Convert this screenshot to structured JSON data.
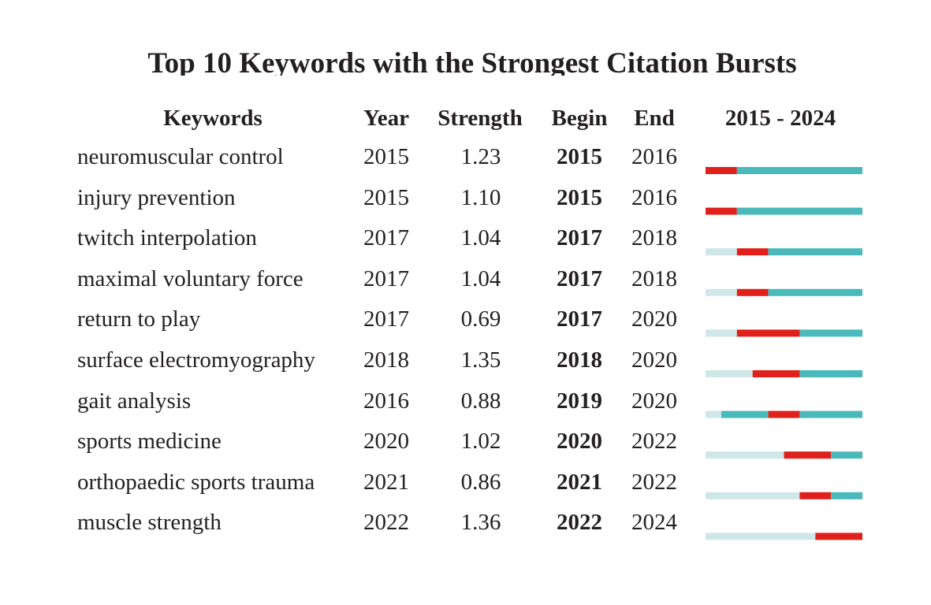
{
  "chart_data": {
    "type": "table",
    "title": "Top 10 Keywords with the Strongest Citation Bursts",
    "headers": {
      "keywords": "Keywords",
      "year": "Year",
      "strength": "Strength",
      "begin": "Begin",
      "end": "End",
      "range": "2015 - 2024"
    },
    "timeline": {
      "start": 2015,
      "end": 2024
    },
    "colors": {
      "burst": "#e0201b",
      "active": "#4ab9bb",
      "inactive": "#cfe7e9"
    },
    "rows": [
      {
        "keyword": "neuromuscular control",
        "year": "2015",
        "strength": "1.23",
        "begin": "2015",
        "end": "2016"
      },
      {
        "keyword": "injury prevention",
        "year": "2015",
        "strength": "1.10",
        "begin": "2015",
        "end": "2016"
      },
      {
        "keyword": "twitch interpolation",
        "year": "2017",
        "strength": "1.04",
        "begin": "2017",
        "end": "2018"
      },
      {
        "keyword": "maximal voluntary force",
        "year": "2017",
        "strength": "1.04",
        "begin": "2017",
        "end": "2018"
      },
      {
        "keyword": "return to play",
        "year": "2017",
        "strength": "0.69",
        "begin": "2017",
        "end": "2020"
      },
      {
        "keyword": "surface electromyography",
        "year": "2018",
        "strength": "1.35",
        "begin": "2018",
        "end": "2020"
      },
      {
        "keyword": "gait analysis",
        "year": "2016",
        "strength": "0.88",
        "begin": "2019",
        "end": "2020"
      },
      {
        "keyword": "sports medicine",
        "year": "2020",
        "strength": "1.02",
        "begin": "2020",
        "end": "2022"
      },
      {
        "keyword": "orthopaedic sports trauma",
        "year": "2021",
        "strength": "0.86",
        "begin": "2021",
        "end": "2022"
      },
      {
        "keyword": "muscle strength",
        "year": "2022",
        "strength": "1.36",
        "begin": "2022",
        "end": "2024"
      }
    ]
  }
}
